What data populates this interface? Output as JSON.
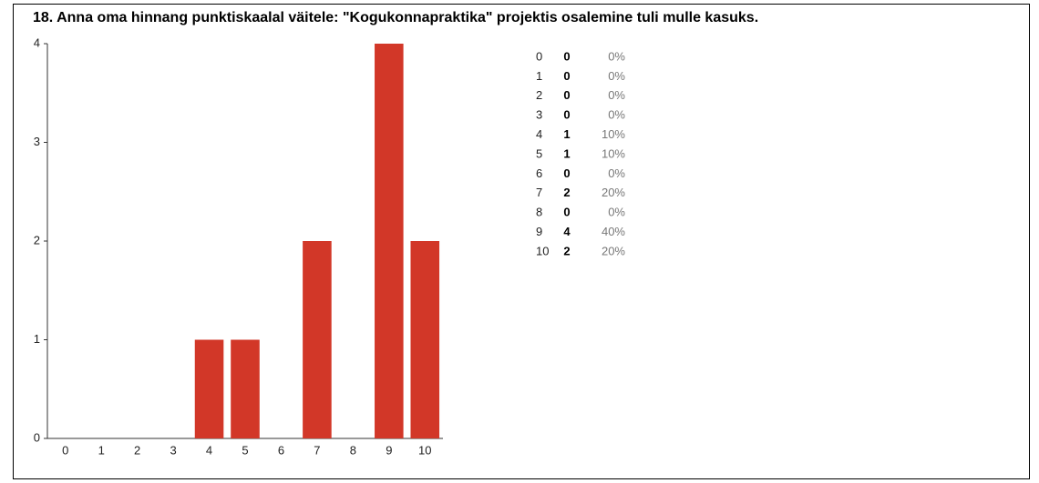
{
  "chart_data": {
    "type": "bar",
    "title": "18. Anna oma hinnang punktiskaalal väitele: \"Kogukonnapraktika\" projektis osalemine tuli mulle kasuks.",
    "categories": [
      "0",
      "1",
      "2",
      "3",
      "4",
      "5",
      "6",
      "7",
      "8",
      "9",
      "10"
    ],
    "values": [
      0,
      0,
      0,
      0,
      1,
      1,
      0,
      2,
      0,
      4,
      2
    ],
    "color": "#d23728",
    "ylim": [
      0,
      4
    ],
    "yticks": [
      0,
      1,
      2,
      3,
      4
    ],
    "grid": false
  },
  "table": {
    "percent_labels": [
      "0%",
      "0%",
      "0%",
      "0%",
      "10%",
      "10%",
      "0%",
      "20%",
      "0%",
      "40%",
      "20%"
    ]
  }
}
